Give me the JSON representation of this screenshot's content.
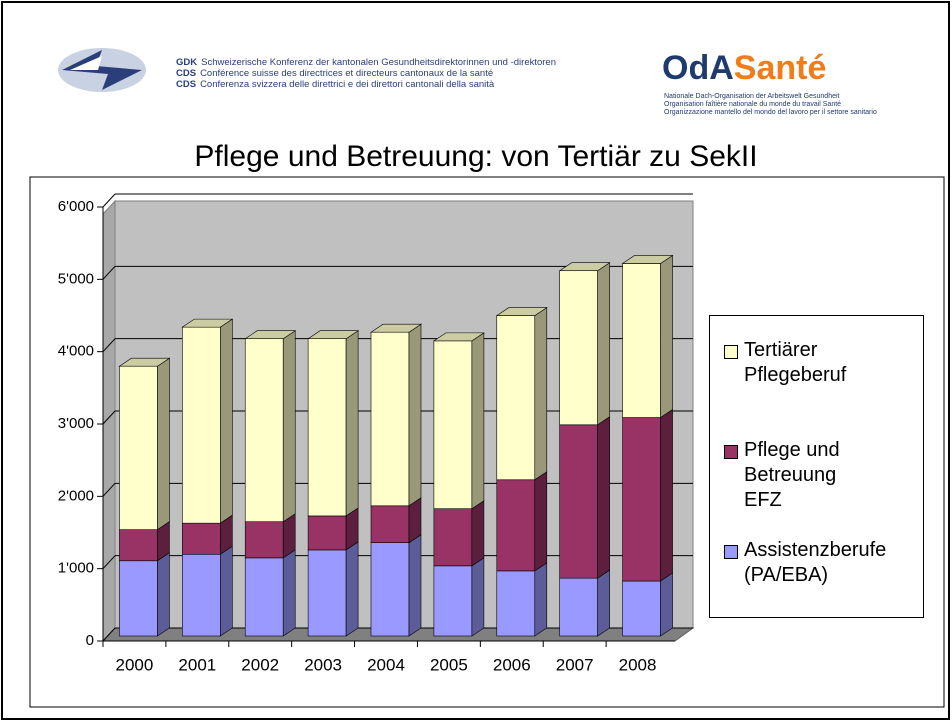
{
  "header": {
    "gdk": [
      {
        "abbr": "GDK",
        "text": "Schweizerische Konferenz der kantonalen Gesundheitsdirektorinnen und -direktoren"
      },
      {
        "abbr": "CDS",
        "text": "Conférence suisse des directrices et directeurs cantonaux de la santé"
      },
      {
        "abbr": "CDS",
        "text": "Conferenza svizzera delle direttrici e dei direttori cantonali della sanità"
      }
    ],
    "oda_logo": [
      "OdA",
      "Santé"
    ],
    "oda_lines": [
      "Nationale Dach-Organisation der Arbeitswelt Gesundheit",
      "Organisation faîtière nationale du monde du travail Santé",
      "Organizzazione mantello del mondo del lavoro per il settore sanitario"
    ]
  },
  "chart_data": {
    "type": "bar3d_stacked",
    "title": "Pflege und Betreuung: von Tertiär zu SekII",
    "categories": [
      "2000",
      "2001",
      "2002",
      "2003",
      "2004",
      "2005",
      "2006",
      "2007",
      "2008"
    ],
    "series": [
      {
        "name": "Assistenzberufe (PA/EBA)",
        "color": "#9999ff",
        "values": [
          1040,
          1130,
          1080,
          1190,
          1290,
          970,
          900,
          800,
          760
        ]
      },
      {
        "name": "Pflege und Betreuung EFZ",
        "color": "#993366",
        "values": [
          430,
          430,
          500,
          470,
          510,
          790,
          1260,
          2120,
          2260
        ]
      },
      {
        "name": "Tertiärer Pflegeberuf",
        "color": "#ffffcc",
        "values": [
          2260,
          2710,
          2530,
          2450,
          2400,
          2320,
          2270,
          2130,
          2130
        ]
      }
    ],
    "ylim": [
      0,
      6000
    ],
    "yticks": [
      0,
      {
        "value": 1000,
        "label": "1'000"
      },
      {
        "value": 2000,
        "label": "2'000"
      },
      {
        "value": 3000,
        "label": "3'000"
      },
      {
        "value": 4000,
        "label": "4'000"
      },
      {
        "value": 5000,
        "label": "5'000"
      },
      {
        "value": 6000,
        "label": "6'000"
      }
    ],
    "grid": true,
    "legend": "right"
  }
}
